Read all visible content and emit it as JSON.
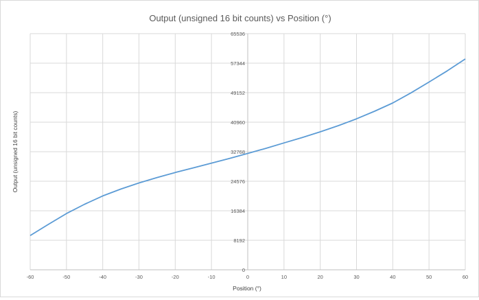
{
  "chart_data": {
    "type": "line",
    "title": "Output (unsigned 16 bit counts) vs Position (°)",
    "xlabel": "Position (°)",
    "ylabel": "Output (unsigned 16 bit counts)",
    "xlim": [
      -60,
      60
    ],
    "ylim": [
      0,
      65536
    ],
    "xticks": [
      -60,
      -50,
      -40,
      -30,
      -20,
      -10,
      0,
      10,
      20,
      30,
      40,
      50,
      60
    ],
    "yticks": [
      0,
      8192,
      16384,
      24576,
      32768,
      40960,
      49152,
      57344,
      65536
    ],
    "grid": true,
    "legend": "none",
    "line_color": "#5b9bd5",
    "series": [
      {
        "x": [
          -60,
          -55,
          -50,
          -45,
          -40,
          -35,
          -30,
          -25,
          -20,
          -15,
          -10,
          -5,
          0,
          5,
          10,
          15,
          20,
          25,
          30,
          35,
          40,
          45,
          50,
          55,
          60
        ],
        "y": [
          9500,
          12600,
          15600,
          18200,
          20500,
          22400,
          24100,
          25600,
          27000,
          28300,
          29600,
          30900,
          32300,
          33700,
          35200,
          36700,
          38300,
          40000,
          41900,
          44000,
          46300,
          49100,
          52100,
          55200,
          58500
        ]
      }
    ]
  }
}
